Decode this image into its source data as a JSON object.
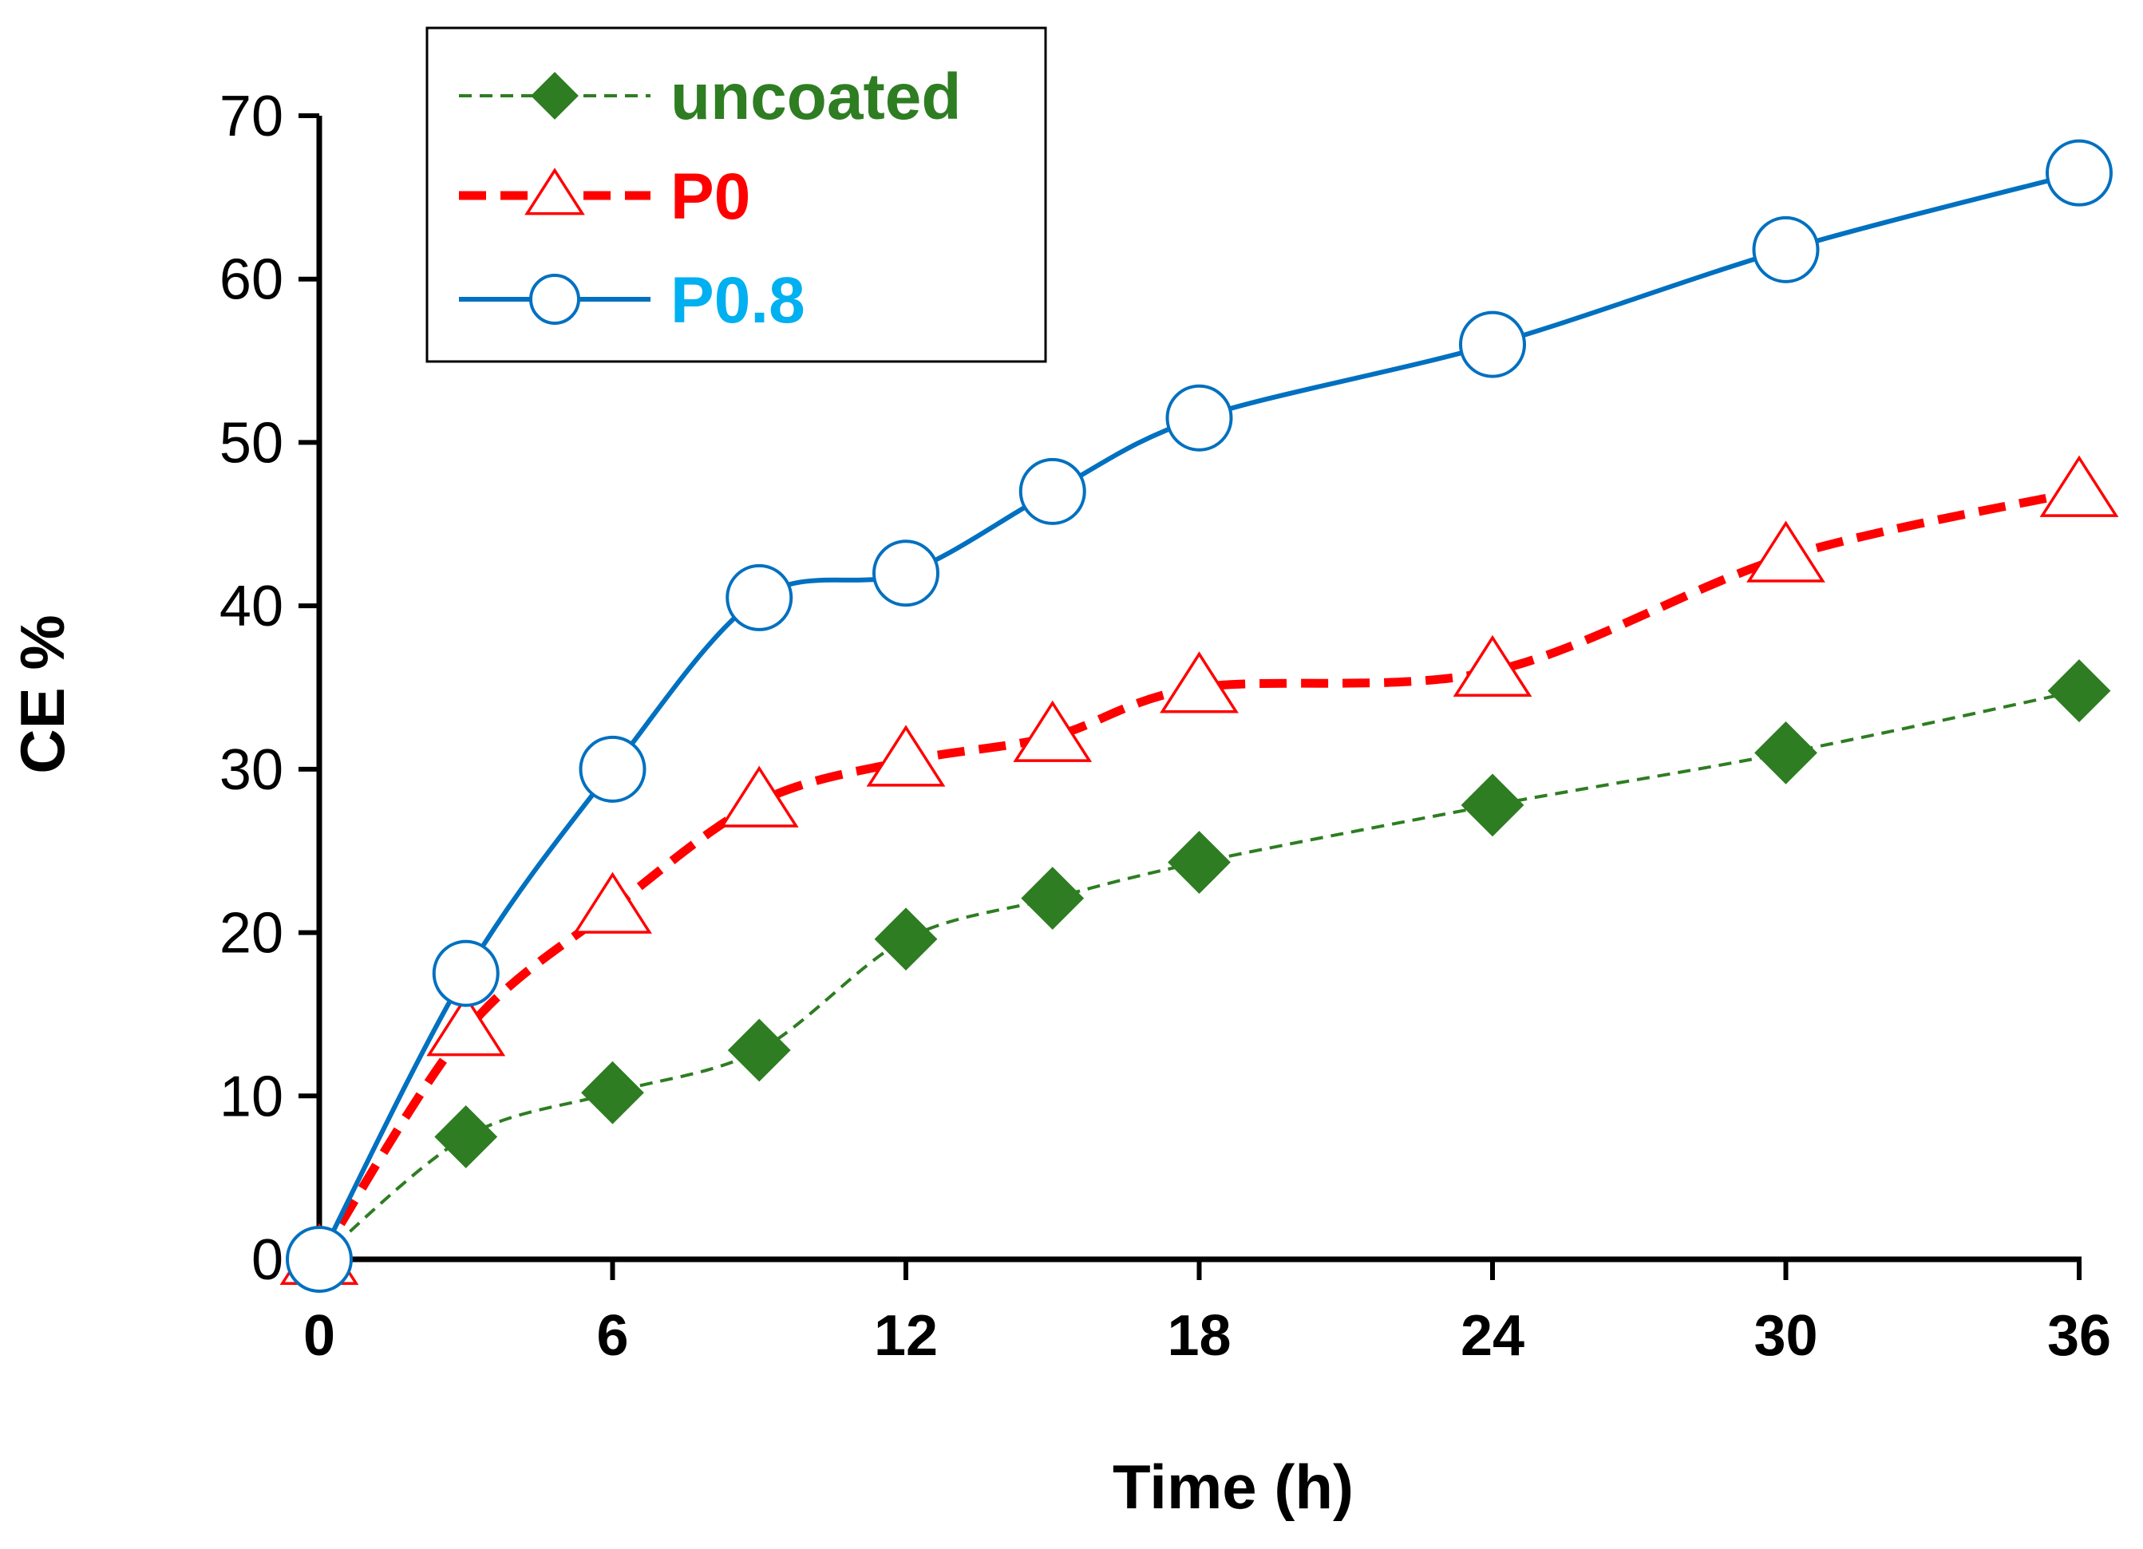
{
  "chart_data": {
    "type": "line",
    "title": "",
    "xlabel": "Time (h)",
    "ylabel": "CE %",
    "xlim": [
      0,
      36
    ],
    "ylim": [
      0,
      70
    ],
    "xticks": [
      0,
      6,
      12,
      18,
      24,
      30,
      36
    ],
    "yticks": [
      0,
      10,
      20,
      30,
      40,
      50,
      60,
      70
    ],
    "grid": false,
    "legend_position": "top-left",
    "x": [
      0,
      3,
      6,
      9,
      12,
      15,
      18,
      24,
      30,
      36
    ],
    "series": [
      {
        "name": "uncoated",
        "color": "#2e7d22",
        "text_color": "#2e7d22",
        "marker": "diamond",
        "line": "dashed-thin",
        "values": [
          0,
          7.5,
          10.2,
          12.8,
          19.6,
          22.1,
          24.3,
          27.8,
          31.0,
          34.8
        ]
      },
      {
        "name": "P0",
        "color": "#ff0000",
        "text_color": "#ff0000",
        "marker": "triangle-open",
        "line": "dashed-thick",
        "values": [
          0,
          14.0,
          21.5,
          28.0,
          30.5,
          32.0,
          35.0,
          36.0,
          43.0,
          47.0
        ]
      },
      {
        "name": "P0.8",
        "color": "#0070c0",
        "text_color": "#00b0f0",
        "marker": "circle-open",
        "line": "solid",
        "values": [
          0,
          17.5,
          30.0,
          40.5,
          42.0,
          47.0,
          51.5,
          56.0,
          61.8,
          66.5
        ]
      }
    ]
  }
}
